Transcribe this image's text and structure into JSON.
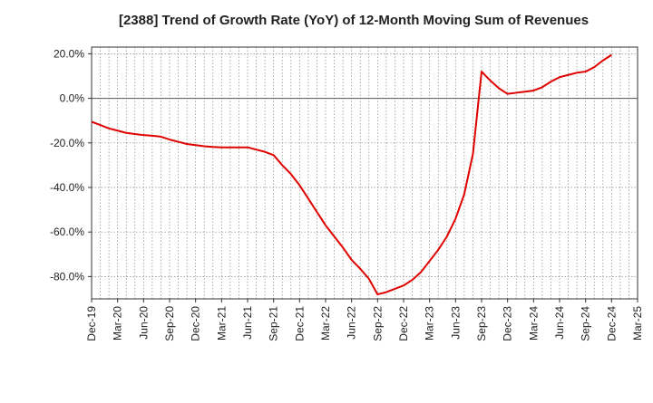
{
  "chart_data": {
    "type": "line",
    "title": "[2388]  Trend of Growth Rate (YoY) of 12-Month Moving Sum of Revenues",
    "xlabel": "",
    "ylabel": "",
    "ylim": [
      -90,
      23
    ],
    "yticks": [
      20,
      0,
      -20,
      -40,
      -60,
      -80
    ],
    "ytick_labels": [
      "20.0%",
      "0.0%",
      "-20.0%",
      "-40.0%",
      "-60.0%",
      "-80.0%"
    ],
    "xtick_labels": [
      "Dec-19",
      "Mar-20",
      "Jun-20",
      "Sep-20",
      "Dec-20",
      "Mar-21",
      "Jun-21",
      "Sep-21",
      "Dec-21",
      "Mar-22",
      "Jun-22",
      "Sep-22",
      "Dec-22",
      "Mar-23",
      "Jun-23",
      "Sep-23",
      "Dec-23",
      "Mar-24",
      "Jun-24",
      "Sep-24",
      "Dec-24",
      "Mar-25"
    ],
    "grid": true,
    "line_color": "#e00000",
    "series": [
      {
        "x": [
          "Dec-19",
          "Jan-20",
          "Feb-20",
          "Mar-20",
          "Apr-20",
          "May-20",
          "Jun-20",
          "Jul-20",
          "Aug-20",
          "Sep-20",
          "Oct-20",
          "Nov-20",
          "Dec-20",
          "Jan-21",
          "Feb-21",
          "Mar-21",
          "Apr-21",
          "May-21",
          "Jun-21",
          "Jul-21",
          "Aug-21",
          "Sep-21",
          "Oct-21",
          "Nov-21",
          "Dec-21",
          "Jan-22",
          "Feb-22",
          "Mar-22",
          "Apr-22",
          "May-22",
          "Jun-22",
          "Jul-22",
          "Aug-22",
          "Sep-22",
          "Oct-22",
          "Nov-22",
          "Dec-22",
          "Jan-23",
          "Feb-23",
          "Mar-23",
          "Apr-23",
          "May-23",
          "Jun-23",
          "Jul-23",
          "Aug-23",
          "Sep-23",
          "Oct-23",
          "Nov-23",
          "Dec-23",
          "Jan-24",
          "Feb-24",
          "Mar-24",
          "Apr-24",
          "May-24",
          "Jun-24",
          "Jul-24",
          "Aug-24",
          "Sep-24",
          "Oct-24",
          "Nov-24",
          "Dec-24"
        ],
        "values": [
          -10.5,
          -12,
          -13.5,
          -14.5,
          -15.5,
          -16,
          -16.5,
          -16.8,
          -17.2,
          -18.5,
          -19.5,
          -20.5,
          -21,
          -21.5,
          -21.8,
          -22,
          -22,
          -22,
          -22,
          -23,
          -24,
          -25.5,
          -30,
          -34,
          -39,
          -45,
          -51,
          -57,
          -62,
          -67,
          -72.5,
          -76.5,
          -81,
          -88,
          -87,
          -85.5,
          -84,
          -81.5,
          -78,
          -73,
          -68,
          -62,
          -54,
          -43,
          -25,
          12,
          8,
          4.5,
          2,
          2.5,
          3,
          3.5,
          5,
          7.5,
          9.5,
          10.5,
          11.5,
          12,
          14,
          17,
          19.5
        ]
      }
    ]
  }
}
